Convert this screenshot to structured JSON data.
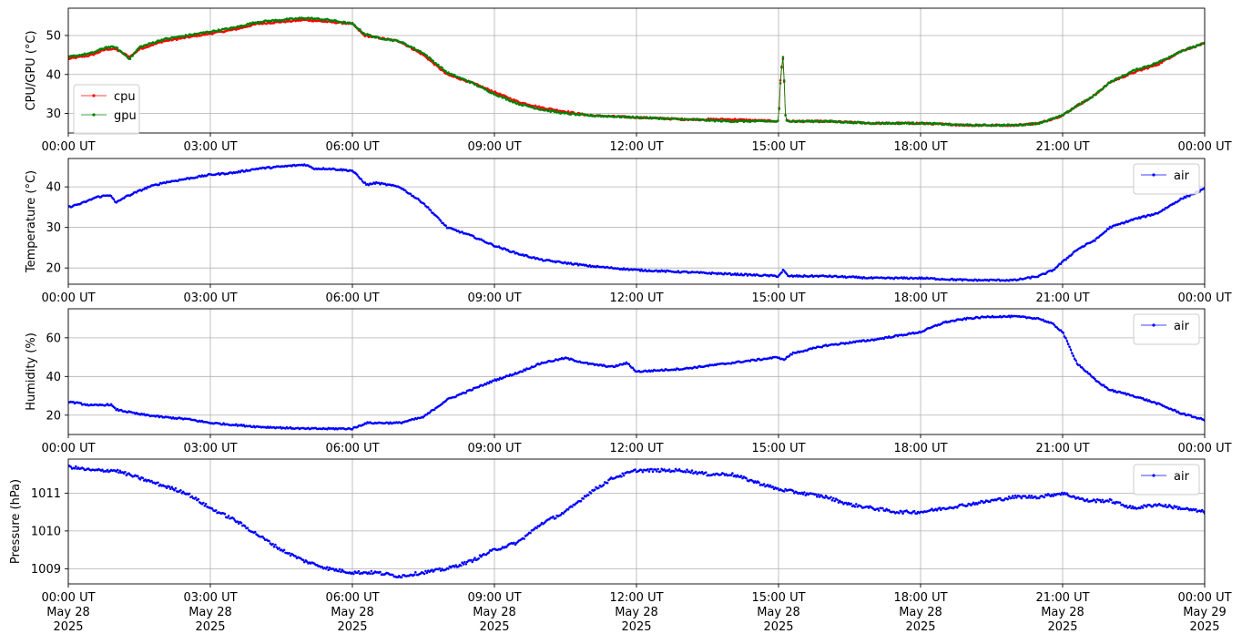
{
  "chart_data": [
    {
      "type": "line",
      "ylabel": "CPU/GPU (°C)",
      "xlabel": "",
      "xlim_hours": [
        0,
        24
      ],
      "ylim": [
        25,
        57
      ],
      "yticks": [
        30,
        40,
        50
      ],
      "xticks_hours": [
        0,
        3,
        6,
        9,
        12,
        15,
        18,
        21,
        24
      ],
      "xtick_labels": [
        "00:00 UT",
        "03:00 UT",
        "06:00 UT",
        "09:00 UT",
        "12:00 UT",
        "15:00 UT",
        "18:00 UT",
        "21:00 UT",
        "00:00 UT"
      ],
      "grid": true,
      "legend": "center-left",
      "series": [
        {
          "name": "cpu",
          "color": "#ff0000",
          "x_hours": [
            0,
            0.5,
            0.8,
            1.0,
            1.3,
            1.5,
            2.0,
            2.5,
            3.0,
            3.5,
            4.0,
            4.5,
            5.0,
            5.5,
            6.0,
            6.25,
            6.5,
            7.0,
            7.5,
            8.0,
            8.5,
            9.0,
            9.5,
            10.0,
            10.5,
            11.0,
            12.0,
            13.0,
            14.0,
            15.0,
            15.05,
            15.1,
            15.15,
            15.25,
            16.0,
            17.0,
            18.0,
            19.0,
            20.0,
            20.5,
            21.0,
            21.3,
            21.6,
            22.0,
            22.5,
            23.0,
            23.5,
            24.0
          ],
          "values": [
            44,
            45,
            46.5,
            46.5,
            44.5,
            46.5,
            48.5,
            49.5,
            50.5,
            51.5,
            53,
            53.5,
            54,
            53.5,
            53,
            50,
            49.5,
            48.5,
            45,
            40,
            38,
            35.5,
            33,
            31.5,
            30.5,
            29.5,
            29,
            28.5,
            28.5,
            28,
            41,
            44.5,
            28.5,
            28,
            28,
            27.5,
            27.5,
            27,
            27,
            27.5,
            29.5,
            32,
            34,
            38,
            40.5,
            42.5,
            46,
            48
          ]
        },
        {
          "name": "gpu",
          "color": "#008000",
          "x_hours": [
            0,
            0.5,
            0.8,
            1.0,
            1.3,
            1.5,
            2.0,
            2.5,
            3.0,
            3.5,
            4.0,
            4.5,
            5.0,
            5.5,
            6.0,
            6.25,
            6.5,
            7.0,
            7.5,
            8.0,
            8.5,
            9.0,
            9.5,
            10.0,
            10.5,
            11.0,
            12.0,
            13.0,
            14.0,
            15.0,
            15.05,
            15.1,
            15.15,
            15.25,
            16.0,
            17.0,
            18.0,
            19.0,
            20.0,
            20.5,
            21.0,
            21.3,
            21.6,
            22.0,
            22.5,
            23.0,
            23.5,
            24.0
          ],
          "values": [
            44.5,
            45.5,
            47,
            47,
            44,
            47,
            49,
            50,
            51,
            52,
            53.5,
            54,
            54.5,
            54,
            53,
            50.5,
            49.5,
            48.5,
            45.5,
            40.5,
            38,
            35,
            32.5,
            31,
            30,
            29.5,
            29,
            28.5,
            28,
            28,
            40,
            45,
            28.5,
            28,
            28,
            27.5,
            27.5,
            27,
            27,
            27.5,
            29.5,
            32,
            34,
            38,
            41,
            43,
            46,
            48
          ]
        }
      ]
    },
    {
      "type": "line",
      "ylabel": "Temperature (°C)",
      "xlabel": "",
      "xlim_hours": [
        0,
        24
      ],
      "ylim": [
        16,
        47
      ],
      "yticks": [
        20,
        30,
        40
      ],
      "xticks_hours": [
        0,
        3,
        6,
        9,
        12,
        15,
        18,
        21,
        24
      ],
      "xtick_labels": [
        "00:00 UT",
        "03:00 UT",
        "06:00 UT",
        "09:00 UT",
        "12:00 UT",
        "15:00 UT",
        "18:00 UT",
        "21:00 UT",
        "00:00 UT"
      ],
      "grid": true,
      "legend": "top-right",
      "series": [
        {
          "name": "air",
          "color": "#0000ff",
          "x_hours": [
            0,
            0.3,
            0.6,
            0.9,
            1.0,
            1.2,
            1.4,
            1.7,
            2.0,
            2.5,
            3.0,
            3.5,
            4.0,
            4.5,
            5.0,
            5.2,
            5.5,
            6.0,
            6.3,
            6.5,
            7.0,
            7.5,
            8.0,
            8.5,
            9.0,
            9.5,
            10.0,
            11.0,
            12.0,
            13.0,
            14.0,
            15.0,
            15.1,
            15.2,
            16.0,
            17.0,
            18.0,
            19.0,
            20.0,
            20.5,
            20.8,
            21.0,
            21.3,
            21.7,
            22.0,
            22.5,
            23.0,
            23.5,
            24.0
          ],
          "values": [
            35,
            36,
            37.5,
            38,
            36,
            37.5,
            38.5,
            40,
            41,
            42,
            43,
            43.5,
            44.5,
            45,
            45.5,
            44.5,
            44.5,
            44,
            40.5,
            41,
            40,
            36,
            30,
            28,
            25.5,
            23.5,
            22,
            20.5,
            19.5,
            19,
            18.5,
            18,
            19.5,
            18,
            18,
            17.5,
            17.5,
            17,
            17,
            18,
            19.5,
            21.5,
            24.5,
            27,
            30,
            32,
            33.5,
            37,
            39.5
          ]
        }
      ]
    },
    {
      "type": "line",
      "ylabel": "Humidity (%)",
      "xlabel": "",
      "xlim_hours": [
        0,
        24
      ],
      "ylim": [
        10,
        75
      ],
      "yticks": [
        20,
        40,
        60
      ],
      "xticks_hours": [
        0,
        3,
        6,
        9,
        12,
        15,
        18,
        21,
        24
      ],
      "xtick_labels": [
        "00:00 UT",
        "03:00 UT",
        "06:00 UT",
        "09:00 UT",
        "12:00 UT",
        "15:00 UT",
        "18:00 UT",
        "21:00 UT",
        "00:00 UT"
      ],
      "grid": true,
      "legend": "top-right",
      "series": [
        {
          "name": "air",
          "color": "#0000ff",
          "x_hours": [
            0,
            0.5,
            0.9,
            1.0,
            1.5,
            2.0,
            2.5,
            3.0,
            4.0,
            5.0,
            6.0,
            6.3,
            7.0,
            7.5,
            8.0,
            8.5,
            9.0,
            9.5,
            10.0,
            10.5,
            11.0,
            11.5,
            11.8,
            12.0,
            13.0,
            14.0,
            15.0,
            15.1,
            15.3,
            16.0,
            17.0,
            18.0,
            18.5,
            19.0,
            19.5,
            20.0,
            20.5,
            20.8,
            21.0,
            21.3,
            21.7,
            22.0,
            22.5,
            23.0,
            23.5,
            24.0
          ],
          "values": [
            27,
            25,
            25.5,
            23,
            20.5,
            19,
            18,
            16,
            14,
            13,
            13,
            16,
            16,
            19,
            28,
            33,
            38,
            42,
            47,
            49.5,
            46.5,
            45,
            47,
            42.5,
            44,
            47,
            50,
            48.5,
            52,
            56,
            59,
            63,
            68,
            70,
            71,
            71,
            70,
            67,
            63,
            47,
            38,
            33,
            30,
            26,
            21,
            17.5
          ]
        }
      ]
    },
    {
      "type": "scatter",
      "ylabel": "Pressure (hPa)",
      "xlabel": "",
      "xlim_hours": [
        0,
        24
      ],
      "ylim": [
        1008.6,
        1011.9
      ],
      "yticks": [
        1009,
        1010,
        1011
      ],
      "xticks_hours": [
        0,
        3,
        6,
        9,
        12,
        15,
        18,
        21,
        24
      ],
      "xtick_labels": [
        "00:00 UT\nMay 28\n2025",
        "03:00 UT\nMay 28\n2025",
        "06:00 UT\nMay 28\n2025",
        "09:00 UT\nMay 28\n2025",
        "12:00 UT\nMay 28\n2025",
        "15:00 UT\nMay 28\n2025",
        "18:00 UT\nMay 28\n2025",
        "21:00 UT\nMay 28\n2025",
        "00:00 UT\nMay 29\n2025"
      ],
      "grid": true,
      "legend": "top-right",
      "series": [
        {
          "name": "air",
          "color": "#0000ff",
          "x_hours": [
            0,
            0.5,
            1.0,
            1.5,
            2.0,
            2.5,
            3.0,
            3.5,
            4.0,
            4.5,
            5.0,
            5.5,
            6.0,
            6.5,
            7.0,
            7.5,
            8.0,
            8.5,
            9.0,
            9.5,
            10.0,
            10.5,
            11.0,
            11.5,
            12.0,
            12.5,
            13.0,
            13.5,
            14.0,
            14.5,
            15.0,
            15.5,
            16.0,
            16.5,
            17.0,
            17.5,
            18.0,
            18.5,
            19.0,
            19.5,
            20.0,
            20.5,
            21.0,
            21.5,
            22.0,
            22.5,
            23.0,
            23.5,
            24.0
          ],
          "values": [
            1011.7,
            1011.6,
            1011.6,
            1011.4,
            1011.2,
            1011.0,
            1010.6,
            1010.3,
            1009.9,
            1009.5,
            1009.2,
            1009.0,
            1008.9,
            1008.9,
            1008.8,
            1008.9,
            1009.0,
            1009.2,
            1009.5,
            1009.7,
            1010.2,
            1010.5,
            1011.0,
            1011.4,
            1011.6,
            1011.6,
            1011.6,
            1011.5,
            1011.5,
            1011.3,
            1011.1,
            1011.0,
            1010.9,
            1010.7,
            1010.6,
            1010.5,
            1010.5,
            1010.6,
            1010.7,
            1010.8,
            1010.9,
            1010.9,
            1011.0,
            1010.8,
            1010.8,
            1010.6,
            1010.7,
            1010.6,
            1010.5
          ]
        }
      ]
    }
  ]
}
